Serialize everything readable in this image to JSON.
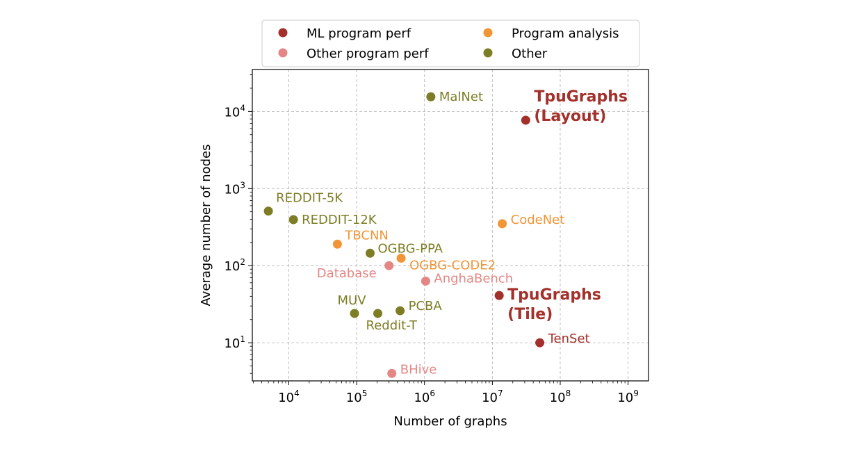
{
  "chart_data": {
    "type": "scatter",
    "xlabel": "Number of graphs",
    "ylabel": "Average number of nodes",
    "xscale": "log",
    "yscale": "log",
    "xlim": [
      2900,
      2000000000
    ],
    "ylim": [
      3.2,
      35000
    ],
    "grid": true,
    "x_ticks": [
      {
        "value": 10000,
        "base": "10",
        "exp": "4"
      },
      {
        "value": 100000,
        "base": "10",
        "exp": "5"
      },
      {
        "value": 1000000,
        "base": "10",
        "exp": "6"
      },
      {
        "value": 10000000,
        "base": "10",
        "exp": "7"
      },
      {
        "value": 100000000,
        "base": "10",
        "exp": "8"
      },
      {
        "value": 1000000000,
        "base": "10",
        "exp": "9"
      }
    ],
    "y_ticks": [
      {
        "value": 10,
        "base": "10",
        "exp": "1"
      },
      {
        "value": 100,
        "base": "10",
        "exp": "2"
      },
      {
        "value": 1000,
        "base": "10",
        "exp": "3"
      },
      {
        "value": 10000,
        "base": "10",
        "exp": "4"
      }
    ],
    "legend_position": "top-center",
    "categories": [
      {
        "key": "ml",
        "name": "ML program perf",
        "color": "#a3302b"
      },
      {
        "key": "other_perf",
        "name": "Other program perf",
        "color": "#e48684"
      },
      {
        "key": "analysis",
        "name": "Program analysis",
        "color": "#f29536"
      },
      {
        "key": "other",
        "name": "Other",
        "color": "#7c7d24"
      }
    ],
    "points": [
      {
        "name": "MalNet",
        "x": 1240000,
        "y": 15500,
        "category": "other"
      },
      {
        "name": "TpuGraphs (Layout)",
        "lines": [
          "TpuGraphs",
          "(Layout)"
        ],
        "x": 31000000,
        "y": 7700,
        "category": "ml",
        "bold": true
      },
      {
        "name": "REDDIT-5K",
        "x": 5000,
        "y": 510,
        "category": "other"
      },
      {
        "name": "REDDIT-12K",
        "x": 11700,
        "y": 395,
        "category": "other"
      },
      {
        "name": "CodeNet",
        "x": 14000000,
        "y": 350,
        "category": "analysis"
      },
      {
        "name": "TBCNN",
        "x": 52000,
        "y": 190,
        "category": "analysis"
      },
      {
        "name": "OGBG-PPA",
        "x": 158000,
        "y": 145,
        "category": "other"
      },
      {
        "name": "OGBG-CODE2",
        "x": 452000,
        "y": 125,
        "category": "analysis"
      },
      {
        "name": "Database",
        "x": 300000,
        "y": 100,
        "category": "other_perf"
      },
      {
        "name": "AnghaBench",
        "x": 1040000,
        "y": 63,
        "category": "other_perf"
      },
      {
        "name": "TpuGraphs (Tile)",
        "lines": [
          "TpuGraphs",
          "(Tile)"
        ],
        "x": 12600000,
        "y": 41,
        "category": "ml",
        "bold": true
      },
      {
        "name": "MUV",
        "x": 93000,
        "y": 24,
        "category": "other"
      },
      {
        "name": "Reddit-T",
        "x": 205000,
        "y": 24,
        "category": "other"
      },
      {
        "name": "PCBA",
        "x": 437000,
        "y": 26,
        "category": "other"
      },
      {
        "name": "TenSet",
        "x": 50000000,
        "y": 10,
        "category": "ml"
      },
      {
        "name": "BHive",
        "x": 330000,
        "y": 4,
        "category": "other_perf"
      }
    ]
  }
}
